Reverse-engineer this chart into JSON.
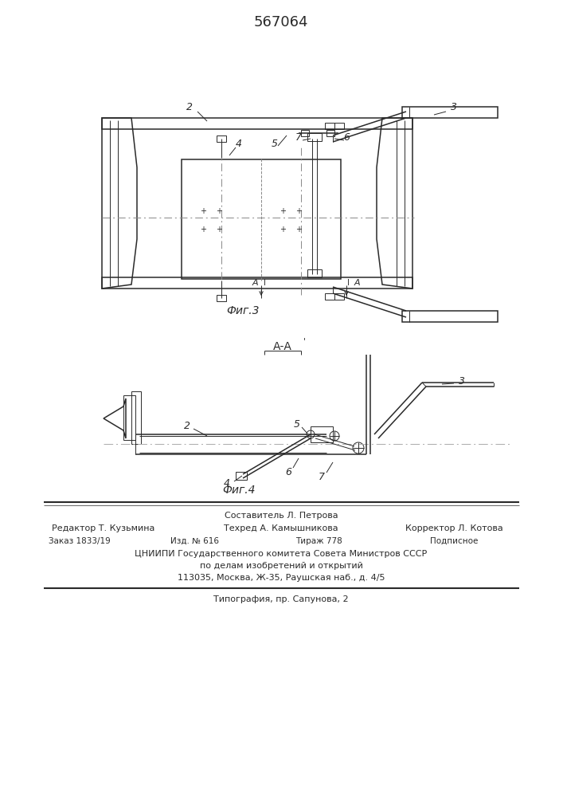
{
  "title": "567064",
  "fig3_label": "Фиг.3",
  "fig4_label": "Фиг.4",
  "section_label": "А-А",
  "background_color": "#ffffff",
  "line_color": "#2a2a2a",
  "footer_line1": "Составитель Л. Петрова",
  "footer_line2_left": "Редактор Т. Кузьмина",
  "footer_line2_mid": "Техред А. Камышникова",
  "footer_line2_right": "Корректор Л. Котова",
  "footer_line3_1": "Заказ 1833/19",
  "footer_line3_2": "Изд. № 616",
  "footer_line3_3": "Тираж 778",
  "footer_line3_4": "Подписное",
  "footer_line4": "ЦНИИПИ Государственного комитета Совета Министров СССР",
  "footer_line5": "по делам изобретений и открытий",
  "footer_line6": "113035, Москва, Ж-35, Раушская наб., д. 4/5",
  "footer_line7": "Типография, пр. Сапунова, 2"
}
